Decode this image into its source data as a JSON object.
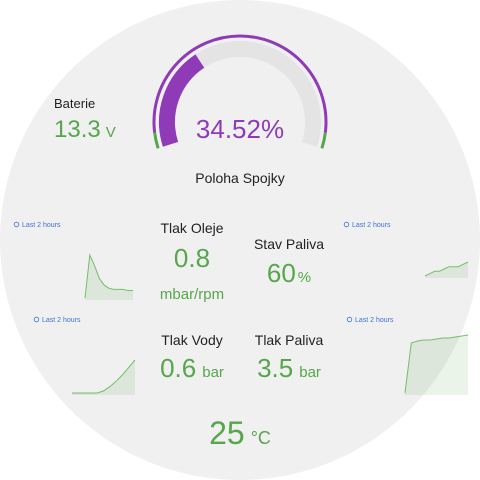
{
  "battery": {
    "label": "Baterie",
    "value": 13.3,
    "unit": "V"
  },
  "gauge": {
    "type": "gauge",
    "label": "Poloha Spojky",
    "value": 34.52,
    "value_label": "34.52%",
    "range": [
      0,
      100
    ],
    "color": "#8f3bb8"
  },
  "stats": [
    {
      "label": "Tlak Oleje",
      "value": 0.8,
      "unit": "mbar/rpm"
    },
    {
      "label": "Stav Paliva",
      "value": 60,
      "unit": "%"
    },
    {
      "label": "Tlak Vody",
      "value": 0.6,
      "unit": "bar"
    },
    {
      "label": "Tlak Paliva",
      "value": 3.5,
      "unit": "bar"
    }
  ],
  "temperature": {
    "value": 25,
    "unit": "°C"
  },
  "sparklines": [
    {
      "type": "line",
      "time_range": "Last 2 hours",
      "values": [
        0,
        40,
        30,
        18,
        12,
        9,
        8,
        8,
        8,
        7,
        7
      ]
    },
    {
      "type": "line",
      "time_range": "Last 2 hours",
      "values": [
        1,
        1.5,
        2,
        2,
        2.5,
        3,
        3,
        3,
        3.5,
        4
      ]
    },
    {
      "type": "line",
      "time_range": "Last 2 hours",
      "values": [
        0,
        0,
        0,
        0,
        0,
        2,
        6,
        11,
        17,
        24,
        31
      ]
    },
    {
      "type": "line",
      "time_range": "Last 2 hours",
      "values": [
        0,
        50,
        52,
        53,
        53,
        54,
        55,
        55,
        56,
        57,
        58
      ]
    }
  ]
}
